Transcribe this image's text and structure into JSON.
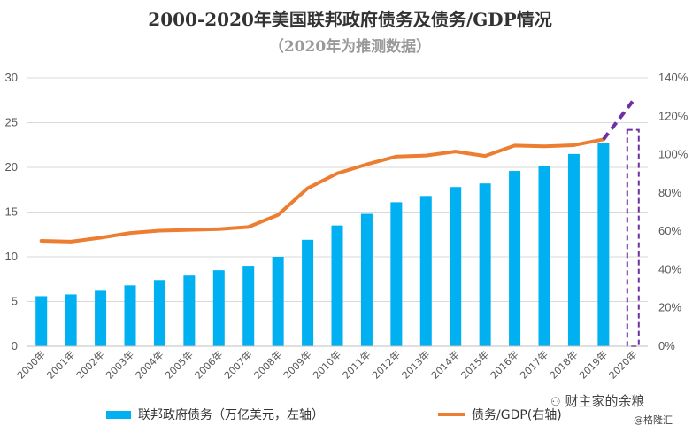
{
  "chart_data": {
    "type": "bar+line",
    "title": "2000-2020年美国联邦政府债务及债务/GDP情况",
    "subtitle": "（2020年为推测数据）",
    "categories": [
      "2000年",
      "2001年",
      "2002年",
      "2003年",
      "2004年",
      "2005年",
      "2006年",
      "2007年",
      "2008年",
      "2009年",
      "2010年",
      "2011年",
      "2012年",
      "2013年",
      "2014年",
      "2015年",
      "2016年",
      "2017年",
      "2018年",
      "2019年",
      "2020年"
    ],
    "series": [
      {
        "name": "联邦政府债务（万亿美元，左轴）",
        "type": "bar",
        "axis": "left",
        "color": "#00B0F0",
        "values": [
          5.6,
          5.8,
          6.2,
          6.8,
          7.4,
          7.9,
          8.5,
          9.0,
          10.0,
          11.9,
          13.5,
          14.8,
          16.1,
          16.8,
          17.8,
          18.2,
          19.6,
          20.2,
          21.5,
          22.7,
          24.2
        ],
        "projected_from_index": 20
      },
      {
        "name": "债务/GDP(右轴)",
        "type": "line",
        "axis": "right",
        "color": "#ED7D31",
        "values": [
          55.0,
          54.6,
          56.6,
          59.1,
          60.3,
          60.7,
          61.1,
          62.2,
          68.5,
          82.4,
          90.2,
          94.9,
          99.0,
          99.5,
          101.6,
          99.3,
          104.7,
          104.3,
          104.9,
          107.9,
          128.0
        ],
        "projected_color": "#7030A0",
        "projected_from_index": 19
      }
    ],
    "y_left": {
      "min": 0,
      "max": 30,
      "ticks": [
        0,
        5,
        10,
        15,
        20,
        25,
        30
      ]
    },
    "y_right": {
      "min": 0,
      "max": 140,
      "ticks": [
        "0%",
        "20%",
        "40%",
        "60%",
        "80%",
        "100%",
        "120%",
        "140%"
      ]
    },
    "grid": true,
    "legend_placement": "bottom"
  },
  "watermark": {
    "top": "财主家的余粮",
    "bottom": "@格隆汇"
  }
}
